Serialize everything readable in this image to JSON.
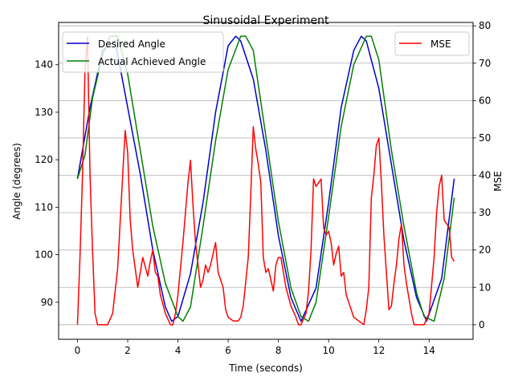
{
  "chart_data": {
    "type": "line",
    "title": "Sinusoidal Experiment",
    "xlabel": "Time (seconds)",
    "ylabel_left": "Angle (degrees)",
    "ylabel_right": "MSE",
    "xlim": [
      -0.75,
      15.75
    ],
    "ylim_left": [
      82.2,
      148.9
    ],
    "ylim_right": [
      -3.9,
      80.9
    ],
    "x_ticks": [
      0,
      2,
      4,
      6,
      8,
      10,
      12,
      14
    ],
    "y_left_ticks": [
      90,
      100,
      110,
      120,
      130,
      140
    ],
    "y_right_ticks": [
      0,
      10,
      20,
      30,
      40,
      50,
      60,
      70,
      80
    ],
    "grid": "horizontal lines at right-axis ticks",
    "legend_left": {
      "placement": "upper-left",
      "entries": [
        "Desired Angle",
        "Actual Achieved Angle"
      ]
    },
    "legend_right": {
      "placement": "upper-right",
      "entries": [
        "MSE"
      ]
    },
    "series": [
      {
        "name": "Desired Angle",
        "axis": "left",
        "color": "#0000cc",
        "x": [
          0,
          0.5,
          1.0,
          1.5,
          2.0,
          2.5,
          3.0,
          3.5,
          3.75,
          4.0,
          4.5,
          5.0,
          5.5,
          6.0,
          6.3,
          6.5,
          7.0,
          7.5,
          8.0,
          8.5,
          8.9,
          9.5,
          10.0,
          10.5,
          11.0,
          11.3,
          11.5,
          12.0,
          12.5,
          13.0,
          13.5,
          13.9,
          14.5,
          15.0
        ],
        "y": [
          116,
          131,
          143,
          145,
          131,
          117,
          101,
          89,
          86,
          87,
          96,
          111,
          130,
          144,
          146,
          145,
          137,
          122,
          104,
          91,
          86,
          93,
          111,
          131,
          143,
          146,
          145,
          135,
          119,
          103,
          91,
          86,
          95,
          116
        ]
      },
      {
        "name": "Actual Achieved Angle",
        "axis": "left",
        "color": "#008000",
        "x": [
          0,
          0.3,
          0.6,
          1.0,
          1.3,
          1.6,
          2.0,
          2.5,
          3.0,
          3.5,
          4.0,
          4.2,
          4.5,
          5.0,
          5.5,
          6.0,
          6.5,
          6.7,
          7.0,
          7.5,
          8.0,
          8.5,
          8.9,
          9.2,
          9.5,
          10.0,
          10.5,
          11.0,
          11.5,
          11.7,
          12.0,
          12.5,
          13.0,
          13.5,
          13.8,
          14.2,
          14.6,
          15.0
        ],
        "y": [
          116,
          121,
          133,
          142,
          146,
          146,
          138,
          122,
          106,
          94,
          87,
          86,
          89,
          106,
          124,
          139,
          146,
          146,
          143,
          125,
          107,
          93,
          87,
          86,
          90,
          108,
          127,
          140,
          146,
          146,
          141,
          122,
          106,
          92,
          87,
          86,
          95,
          112
        ]
      },
      {
        "name": "MSE",
        "axis": "right",
        "color": "#ff0000",
        "x": [
          0,
          0.1,
          0.2,
          0.3,
          0.4,
          0.5,
          0.6,
          0.7,
          0.8,
          1.0,
          1.2,
          1.4,
          1.6,
          1.8,
          1.9,
          2.0,
          2.1,
          2.2,
          2.4,
          2.5,
          2.6,
          2.8,
          2.9,
          3.0,
          3.1,
          3.2,
          3.3,
          3.5,
          3.7,
          3.8,
          3.9,
          4.0,
          4.2,
          4.4,
          4.5,
          4.6,
          4.7,
          4.8,
          4.9,
          5.0,
          5.1,
          5.2,
          5.3,
          5.5,
          5.6,
          5.7,
          5.8,
          5.9,
          6.0,
          6.2,
          6.4,
          6.5,
          6.6,
          6.8,
          6.9,
          7.0,
          7.1,
          7.2,
          7.3,
          7.4,
          7.5,
          7.6,
          7.8,
          7.9,
          8.0,
          8.1,
          8.3,
          8.5,
          8.7,
          8.8,
          8.9,
          9.1,
          9.2,
          9.3,
          9.4,
          9.5,
          9.6,
          9.7,
          9.8,
          9.9,
          10.0,
          10.1,
          10.2,
          10.3,
          10.4,
          10.5,
          10.6,
          10.7,
          10.8,
          11.0,
          11.2,
          11.4,
          11.5,
          11.6,
          11.7,
          11.8,
          11.9,
          12.0,
          12.1,
          12.2,
          12.4,
          12.5,
          12.6,
          12.7,
          12.8,
          12.9,
          13.0,
          13.1,
          13.2,
          13.3,
          13.4,
          13.6,
          13.8,
          14.0,
          14.2,
          14.3,
          14.4,
          14.5,
          14.6,
          14.7,
          14.8,
          14.9,
          15.0
        ],
        "y": [
          0,
          18,
          40,
          68,
          77,
          40,
          20,
          3,
          0,
          0,
          0,
          3,
          15,
          40,
          52,
          46,
          28,
          20,
          10,
          14,
          18,
          13,
          17,
          20,
          14,
          13,
          8,
          3,
          0,
          0,
          3,
          8,
          22,
          38,
          44,
          32,
          22,
          16,
          10,
          12,
          16,
          14,
          16,
          22,
          14,
          12,
          10,
          4,
          2,
          1,
          1,
          2,
          5,
          18,
          35,
          53,
          47,
          43,
          38,
          18,
          14,
          15,
          9,
          16,
          18,
          18,
          10,
          5,
          2,
          0,
          0,
          3,
          9,
          20,
          39,
          37,
          38,
          39,
          26,
          24,
          25,
          22,
          16,
          19,
          21,
          13,
          14,
          8,
          6,
          2,
          1,
          0,
          4,
          10,
          34,
          40,
          48,
          50,
          38,
          24,
          4,
          5,
          11,
          16,
          23,
          27,
          16,
          11,
          7,
          3,
          0,
          0,
          0,
          3,
          18,
          30,
          37,
          40,
          28,
          27,
          26,
          18,
          17
        ]
      }
    ]
  }
}
